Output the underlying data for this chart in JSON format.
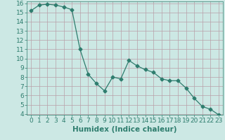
{
  "x": [
    0,
    1,
    2,
    3,
    4,
    5,
    6,
    7,
    8,
    9,
    10,
    11,
    12,
    13,
    14,
    15,
    16,
    17,
    18,
    19,
    20,
    21,
    22,
    23
  ],
  "y": [
    15.2,
    15.8,
    15.9,
    15.8,
    15.6,
    15.3,
    11.0,
    8.3,
    7.3,
    6.5,
    8.0,
    7.8,
    9.8,
    9.2,
    8.8,
    8.5,
    7.8,
    7.6,
    7.6,
    6.8,
    5.7,
    4.8,
    4.5,
    3.9
  ],
  "line_color": "#2e7d6e",
  "marker": "D",
  "marker_size": 2.5,
  "bg_color": "#cce8e4",
  "grid_color": "#b8a0a8",
  "xlabel": "Humidex (Indice chaleur)",
  "ylim": [
    4,
    16
  ],
  "xlim": [
    -0.5,
    23.5
  ],
  "yticks": [
    4,
    5,
    6,
    7,
    8,
    9,
    10,
    11,
    12,
    13,
    14,
    15,
    16
  ],
  "xticks": [
    0,
    1,
    2,
    3,
    4,
    5,
    6,
    7,
    8,
    9,
    10,
    11,
    12,
    13,
    14,
    15,
    16,
    17,
    18,
    19,
    20,
    21,
    22,
    23
  ],
  "tick_label_fontsize": 6.5,
  "xlabel_fontsize": 7.5
}
